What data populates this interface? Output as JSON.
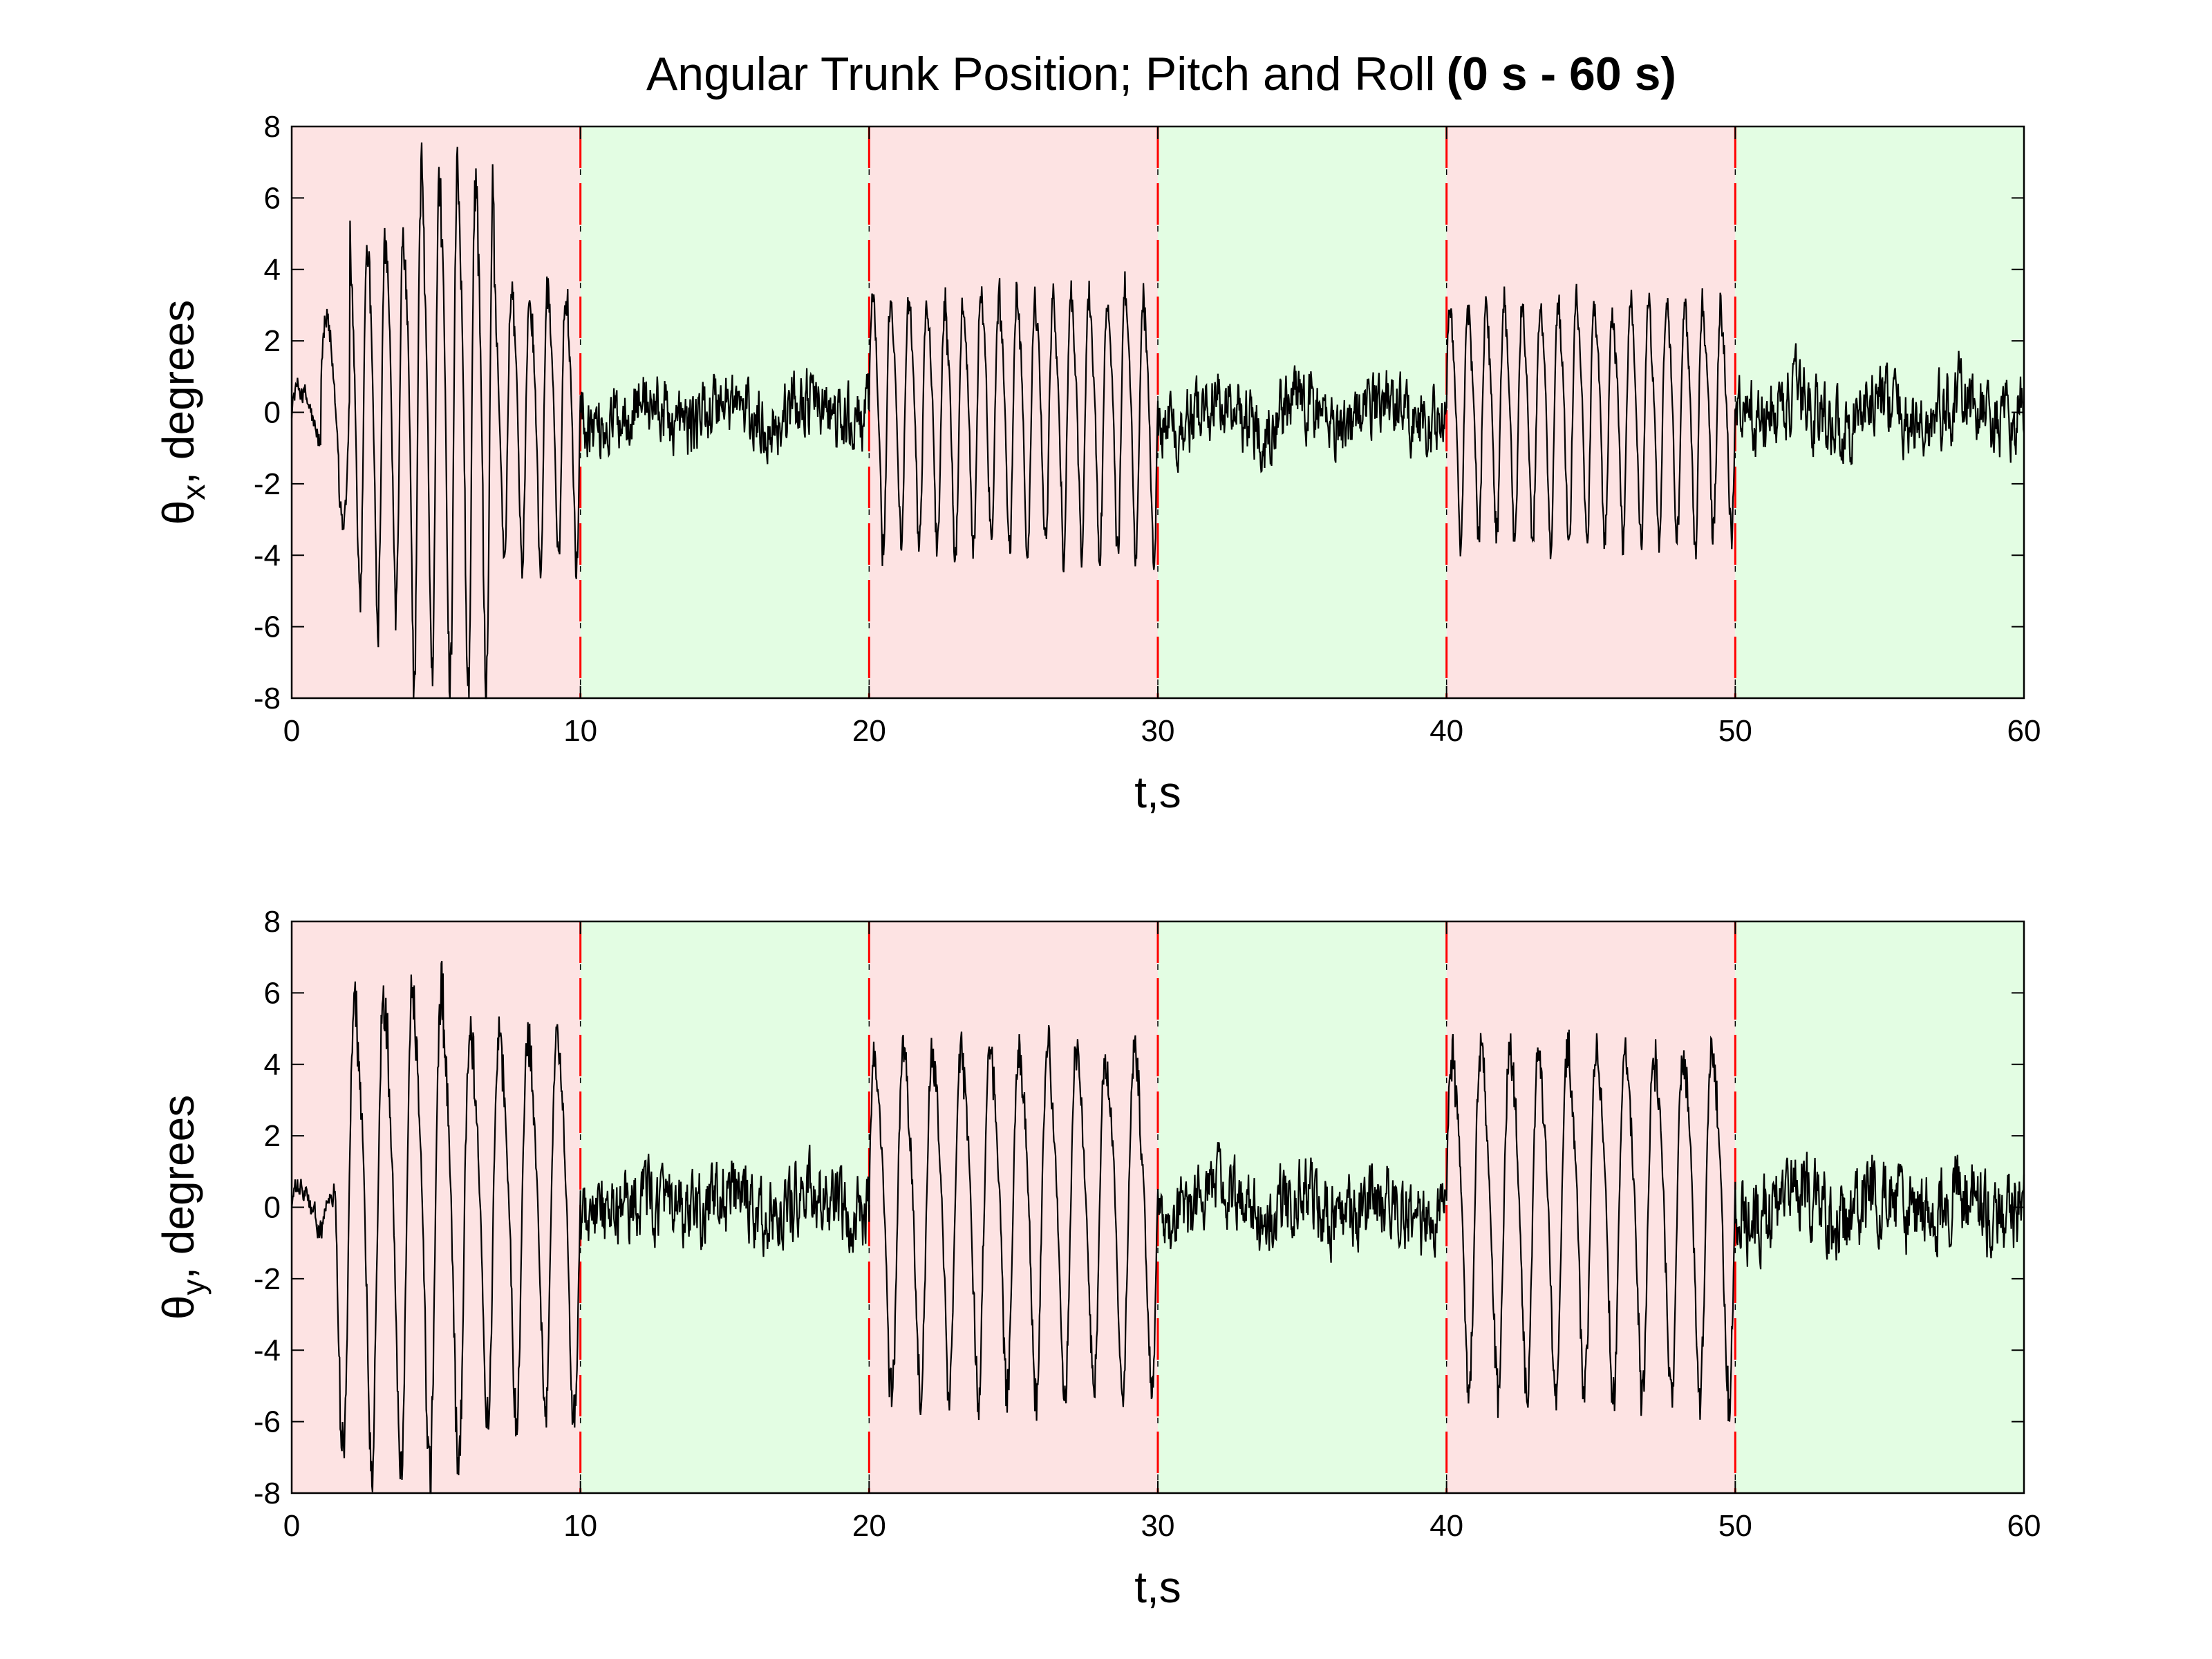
{
  "chart_data": [
    {
      "type": "line",
      "title": "Angular Trunk Position; Pitch and Roll",
      "title_bold_suffix": "(0 s - 60 s)",
      "xlabel": "t,s",
      "ylabel": "θ_x, degrees",
      "ylabel_symbol": "θ",
      "ylabel_subscript": "x",
      "ylabel_suffix": ", degrees",
      "xlim": [
        0,
        60
      ],
      "ylim": [
        -8,
        8
      ],
      "xticks": [
        "0",
        "10",
        "20",
        "30",
        "40",
        "50",
        "60"
      ],
      "yticks": [
        "8",
        "6",
        "4",
        "2",
        "0",
        "-2",
        "-4",
        "-6",
        "-8"
      ],
      "grid": false,
      "line_color": "#000000",
      "bands": [
        {
          "x0": 0,
          "x1": 10,
          "color": "#fde3e3"
        },
        {
          "x0": 10,
          "x1": 20,
          "color": "#e3fde3"
        },
        {
          "x0": 20,
          "x1": 30,
          "color": "#fde3e3"
        },
        {
          "x0": 30,
          "x1": 40,
          "color": "#e3fde3"
        },
        {
          "x0": 40,
          "x1": 50,
          "color": "#fde3e3"
        },
        {
          "x0": 50,
          "x1": 60,
          "color": "#e3fde3"
        }
      ],
      "boundary_color": "#ff0000",
      "series_envelope": [
        {
          "x0": 0,
          "x1": 1,
          "amp": 0.8,
          "freq": 0.8
        },
        {
          "x0": 1,
          "x1": 2,
          "amp": 3.0,
          "freq": 1.0
        },
        {
          "x0": 2,
          "x1": 4,
          "amp": 5.5,
          "freq": 1.6
        },
        {
          "x0": 4,
          "x1": 7,
          "amp": 7.5,
          "freq": 1.6
        },
        {
          "x0": 7,
          "x1": 10,
          "amp": 4.0,
          "freq": 1.6
        },
        {
          "x0": 10,
          "x1": 20,
          "amp": 1.2,
          "freq": 0
        },
        {
          "x0": 20,
          "x1": 30,
          "amp": 3.6,
          "freq": 1.6
        },
        {
          "x0": 30,
          "x1": 40,
          "amp": 1.2,
          "freq": 0
        },
        {
          "x0": 40,
          "x1": 50,
          "amp": 3.4,
          "freq": 1.6
        },
        {
          "x0": 50,
          "x1": 60,
          "amp": 1.3,
          "freq": 0
        }
      ]
    },
    {
      "type": "line",
      "title": "",
      "xlabel": "t,s",
      "ylabel": "θ_y, degrees",
      "ylabel_symbol": "θ",
      "ylabel_subscript": "y",
      "ylabel_suffix": ", degrees",
      "xlim": [
        0,
        60
      ],
      "ylim": [
        -8,
        8
      ],
      "xticks": [
        "0",
        "10",
        "20",
        "30",
        "40",
        "50",
        "60"
      ],
      "yticks": [
        "8",
        "6",
        "4",
        "2",
        "0",
        "-2",
        "-4",
        "-6",
        "-8"
      ],
      "grid": false,
      "line_color": "#000000",
      "bands": [
        {
          "x0": 0,
          "x1": 10,
          "color": "#fde3e3"
        },
        {
          "x0": 10,
          "x1": 20,
          "color": "#e3fde3"
        },
        {
          "x0": 20,
          "x1": 30,
          "color": "#fde3e3"
        },
        {
          "x0": 30,
          "x1": 40,
          "color": "#e3fde3"
        },
        {
          "x0": 40,
          "x1": 50,
          "color": "#fde3e3"
        },
        {
          "x0": 50,
          "x1": 60,
          "color": "#e3fde3"
        }
      ],
      "boundary_color": "#ff0000",
      "series_envelope": [
        {
          "x0": 0,
          "x1": 1.5,
          "amp": 0.6,
          "freq": 0.8
        },
        {
          "x0": 1.5,
          "x1": 3,
          "amp": 6.5,
          "freq": 1.0
        },
        {
          "x0": 3,
          "x1": 6,
          "amp": 7.0,
          "freq": 1.0
        },
        {
          "x0": 6,
          "x1": 10,
          "amp": 5.5,
          "freq": 1.0
        },
        {
          "x0": 10,
          "x1": 20,
          "amp": 1.3,
          "freq": 0
        },
        {
          "x0": 20,
          "x1": 30,
          "amp": 5.0,
          "freq": 1.0
        },
        {
          "x0": 30,
          "x1": 40,
          "amp": 1.3,
          "freq": 0
        },
        {
          "x0": 40,
          "x1": 50,
          "amp": 5.0,
          "freq": 1.0
        },
        {
          "x0": 50,
          "x1": 60,
          "amp": 1.5,
          "freq": 0
        }
      ]
    }
  ]
}
